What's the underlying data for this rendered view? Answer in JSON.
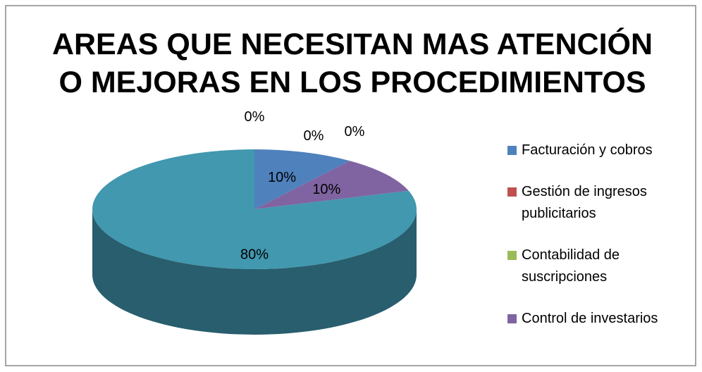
{
  "chart_data": {
    "type": "pie",
    "title": "AREAS QUE NECESITAN MAS ATENCIÓN O MEJORAS EN LOS PROCEDIMIENTOS",
    "categories": [
      "Facturación y cobros",
      "Gestión de ingresos publicitarios",
      "Contabilidad de suscripciones",
      "Control de investarios",
      null,
      null
    ],
    "values": [
      10,
      0,
      0,
      10,
      80,
      0
    ],
    "value_labels": [
      "10%",
      "0%",
      "0%",
      "10%",
      "80%",
      "0%"
    ],
    "colors": [
      "#4f81bd",
      "#c0504d",
      "#9bbb59",
      "#8064a2",
      "#4198af",
      "#f79646"
    ],
    "legend": "right"
  }
}
